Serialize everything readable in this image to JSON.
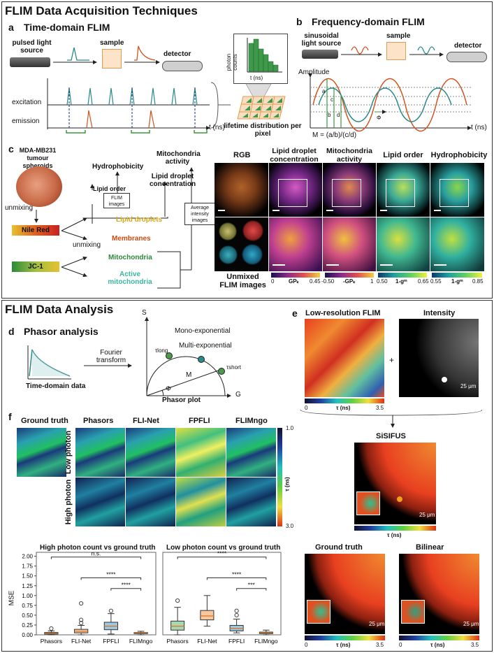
{
  "acq": {
    "title": "FLIM Data Acquisition Techniques",
    "a": {
      "letter": "a",
      "title": "Time-domain FLIM",
      "source": "pulsed light source",
      "sample": "sample",
      "detector": "detector",
      "photon_counts": "photon counts",
      "t_ns": "t (ns)",
      "excitation": "excitation",
      "emission": "emission",
      "t_axis": "t (ns)",
      "lifetime": "lifetime distribution per pixel"
    },
    "b": {
      "letter": "b",
      "title": "Frequency-domain FLIM",
      "source": "sinusoidal light source",
      "sample": "sample",
      "detector": "detector",
      "amplitude": "Amplitude",
      "a": "a",
      "b": "b",
      "c": "c",
      "d": "d",
      "phi": "Φ",
      "formula": "M = (a/b)/(c/d)",
      "t_axis": "t (ns)"
    },
    "c": {
      "letter": "c",
      "cell_line": "MDA-MB231 tumour spheroids",
      "unmixing": "unmixing",
      "unmixing2": "unmixing",
      "nile_red": "Nile Red",
      "jc1": "JC-1",
      "lipid_droplets": "Lipid droplets",
      "membranes": "Membranes",
      "mitochondria": "Mitochondria",
      "active_mito": "Active mitochondria",
      "flim_images": "FLIM images",
      "avg_intensity": "Average intensity images",
      "hydrophobicity": "Hydrophobicity",
      "lipid_order": "Lipid order",
      "mito_activity": "Mitochondria activity",
      "lipid_conc": "Lipid droplet concentration",
      "col_rgb": "RGB",
      "col_lipid": "Lipid droplet concentration",
      "col_mito": "Mitochondria activity",
      "col_order": "Lipid order",
      "col_hydro": "Hydrophobicity",
      "unmixed_flim": "Unmixed FLIM images",
      "cb1_min": "0",
      "cb1_lbl": "GPₖ",
      "cb1_max": "0.45",
      "cb2_min": "-0.50",
      "cb2_lbl": "-GPₖ",
      "cb2_max": "1",
      "cb3_min": "0.50",
      "cb3_lbl": "1-gᵐ",
      "cb3_max": "0.65",
      "cb4_min": "0.55",
      "cb4_lbl": "1-gᵐ",
      "cb4_max": "0.85"
    }
  },
  "ana": {
    "title": "FLIM Data Analysis",
    "d": {
      "letter": "d",
      "title": "Phasor analysis",
      "fourier": "Fourier transform",
      "td_data": "Time-domain data",
      "phasor_plot": "Phasor plot",
      "S": "S",
      "G": "G",
      "M": "M",
      "phi": "Φ",
      "mono": "Mono-exponential",
      "multi": "Multi-exponential",
      "tau_long": "τlong",
      "tau_short": "τshort"
    },
    "e": {
      "letter": "e",
      "lowres": "Low-resolution FLIM",
      "intensity": "Intensity",
      "plus": "+",
      "cb_min": "0",
      "cb_lbl": "τ (ns)",
      "cb_max": "3.5",
      "scale": "25 μm",
      "sisifus": "SiSIFUS",
      "sis_cb_lbl": "τ (ns)",
      "sis_scale": "25 μm",
      "gt": "Ground truth",
      "bilinear": "Bilinear",
      "gt_cb_min": "0",
      "gt_cb_lbl": "τ (ns)",
      "gt_cb_max": "3.5",
      "gt_scale": "25 μm",
      "bl_cb_min": "0",
      "bl_cb_lbl": "τ (ns)",
      "bl_cb_max": "3.5",
      "bl_scale": "25 μm"
    },
    "f": {
      "letter": "f",
      "gt": "Ground truth",
      "cols": [
        "Phasors",
        "FLI-Net",
        "FPFLI",
        "FLIMngo"
      ],
      "low": "Low photon",
      "high": "High photon",
      "cb_max": "1.0",
      "cb_min": "3.0",
      "cb_lbl": "τ (ns)"
    }
  },
  "chart_data": [
    {
      "type": "box",
      "title": "High photon count vs ground truth",
      "ylabel": "MSE",
      "ylim": [
        0,
        2.1
      ],
      "yticks": [
        0.0,
        0.25,
        0.5,
        0.75,
        1.0,
        1.25,
        1.5,
        1.75,
        2.0
      ],
      "ytick_labels": [
        "0.00",
        "0.25",
        "0.50",
        "0.75",
        "1.00",
        "1.25",
        "1.50",
        "1.75",
        "2.00"
      ],
      "categories": [
        "Phasors",
        "FLI-Net",
        "FPFLI",
        "FLIMngo"
      ],
      "boxes": [
        {
          "min": 0.0,
          "q1": 0.02,
          "median": 0.04,
          "q3": 0.06,
          "max": 0.1,
          "outliers": [
            0.16
          ]
        },
        {
          "min": 0.0,
          "q1": 0.05,
          "median": 0.09,
          "q3": 0.14,
          "max": 0.24,
          "outliers": [
            0.8,
            0.38,
            0.3
          ]
        },
        {
          "min": 0.02,
          "q1": 0.13,
          "median": 0.22,
          "q3": 0.32,
          "max": 0.54,
          "outliers": [
            0.61
          ]
        },
        {
          "min": 0.0,
          "q1": 0.03,
          "median": 0.05,
          "q3": 0.06,
          "max": 0.09,
          "outliers": []
        }
      ],
      "significance": [
        {
          "from": 0,
          "to": 3,
          "label": "n.s."
        },
        {
          "from": 1,
          "to": 3,
          "label": "****"
        },
        {
          "from": 2,
          "to": 3,
          "label": "****"
        }
      ]
    },
    {
      "type": "box",
      "title": "Low photon count vs ground truth",
      "ylabel": "",
      "ylim": [
        0,
        2.1
      ],
      "categories": [
        "Phasors",
        "FLI-Net",
        "FPFLI",
        "FLIMngo"
      ],
      "boxes": [
        {
          "min": 0.0,
          "q1": 0.12,
          "median": 0.22,
          "q3": 0.35,
          "max": 0.7,
          "outliers": [
            0.87
          ]
        },
        {
          "min": 0.22,
          "q1": 0.38,
          "median": 0.48,
          "q3": 0.62,
          "max": 1.0,
          "outliers": []
        },
        {
          "min": 0.05,
          "q1": 0.1,
          "median": 0.16,
          "q3": 0.24,
          "max": 0.4,
          "outliers": [
            0.61,
            0.5
          ]
        },
        {
          "min": 0.0,
          "q1": 0.03,
          "median": 0.05,
          "q3": 0.07,
          "max": 0.12,
          "outliers": []
        }
      ],
      "significance": [
        {
          "from": 0,
          "to": 3,
          "label": "****"
        },
        {
          "from": 1,
          "to": 3,
          "label": "****"
        },
        {
          "from": 2,
          "to": 3,
          "label": "***"
        }
      ]
    }
  ]
}
